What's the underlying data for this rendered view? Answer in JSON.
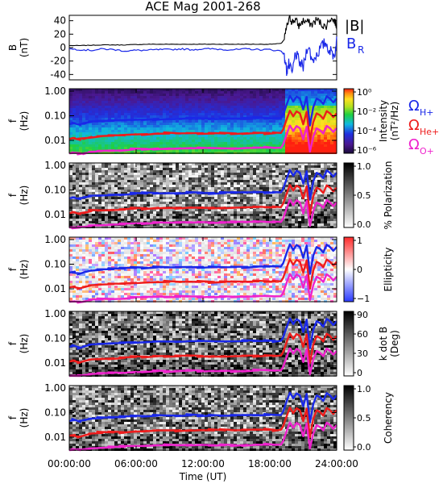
{
  "title": "ACE Mag 2001-268",
  "colors": {
    "blue": "#1a28e8",
    "red": "#ee1c1c",
    "magenta": "#ee22cc",
    "black": "#000000"
  },
  "time_axis": {
    "label": "Time (UT)",
    "ticks": [
      "00:00:00",
      "06:00:00",
      "12:00:00",
      "18:00:00",
      "24:00:00"
    ],
    "range_hours": [
      0,
      24
    ]
  },
  "freq_axis": {
    "tick_labels": [
      "1.00",
      "0.10",
      "0.01"
    ],
    "tick_values": [
      1.0,
      0.1,
      0.01
    ],
    "range_hz": [
      0.003,
      1.25
    ],
    "scale": "log"
  },
  "legend": {
    "top": [
      {
        "text": "|B|",
        "color": "#000000"
      },
      {
        "text": "B",
        "sub": "R",
        "color": "#1a28e8"
      }
    ],
    "gyro": [
      {
        "text": "Ω",
        "sub": "H+",
        "color": "#1a28e8"
      },
      {
        "text": "Ω",
        "sub": "He+",
        "color": "#ee1c1c"
      },
      {
        "text": "Ω",
        "sub": "O+",
        "color": "#ee22cc"
      }
    ]
  },
  "chart_data": [
    {
      "type": "line",
      "panel": "magnetic-field",
      "ylabel": "B",
      "ylabel2": "(nT)",
      "ylim": [
        -48,
        48
      ],
      "yticks": [
        40,
        20,
        0,
        -20,
        -40
      ],
      "xlim": [
        0,
        24
      ],
      "series": [
        {
          "name": "|B|",
          "x": [
            0,
            1,
            2,
            3,
            4,
            5,
            6,
            7,
            8,
            9,
            10,
            11,
            12,
            13,
            14,
            15,
            16,
            17,
            18,
            19,
            19.3,
            19.5,
            19.8,
            20,
            20.3,
            20.6,
            21,
            21.4,
            21.8,
            22.2,
            22.6,
            23,
            23.4,
            23.8,
            24
          ],
          "y": [
            3,
            3,
            3.5,
            4,
            4,
            4,
            4.5,
            5,
            5,
            5,
            5,
            5,
            5,
            5,
            5,
            5,
            5,
            5,
            5,
            6,
            12,
            30,
            44,
            38,
            42,
            32,
            40,
            38,
            34,
            42,
            36,
            30,
            44,
            40,
            32
          ]
        },
        {
          "name": "B_R",
          "x": [
            0,
            1,
            2,
            3,
            4,
            5,
            6,
            7,
            8,
            9,
            10,
            11,
            12,
            13,
            14,
            15,
            16,
            17,
            18,
            19,
            19.3,
            19.5,
            19.7,
            20,
            20.3,
            20.6,
            21,
            21.4,
            21.8,
            22.2,
            22.6,
            23,
            23.4,
            23.8,
            24
          ],
          "y": [
            -2,
            -3,
            -4,
            -2,
            -3,
            -5,
            -4,
            -4,
            -3,
            -3,
            -2,
            -3,
            -2,
            -2,
            -3,
            -3,
            -2,
            -3,
            -3,
            -5,
            -10,
            -35,
            -25,
            -40,
            -8,
            -20,
            -30,
            5,
            -20,
            -10,
            0,
            8,
            -5,
            -12,
            10
          ]
        }
      ]
    },
    {
      "type": "heatmap",
      "panel": "intensity",
      "ylabel": "f",
      "ylabel2": "(Hz)",
      "colorbar": {
        "label": "Intensity",
        "label2": "(nT²/Hz)",
        "ticks": [
          "10⁰",
          "10⁻²",
          "10⁻⁴",
          "10⁻⁶"
        ],
        "colormap": "rainbow"
      }
    },
    {
      "type": "heatmap",
      "panel": "polarization",
      "ylabel": "f",
      "ylabel2": "(Hz)",
      "colorbar": {
        "label": "% Polarization",
        "ticks": [
          "1.0",
          "0.5",
          "0.0"
        ],
        "colormap": "gray"
      }
    },
    {
      "type": "heatmap",
      "panel": "ellipticity",
      "ylabel": "f",
      "ylabel2": "(Hz)",
      "colorbar": {
        "label": "Ellipticity",
        "ticks": [
          "1",
          "0",
          "−1"
        ],
        "colormap": "blue-white-red"
      }
    },
    {
      "type": "heatmap",
      "panel": "k-dot-b",
      "ylabel": "f",
      "ylabel2": "(Hz)",
      "colorbar": {
        "label": "k dot B",
        "label2": "(Deg)",
        "ticks": [
          "90",
          "60",
          "30",
          "0"
        ],
        "colormap": "gray"
      }
    },
    {
      "type": "heatmap",
      "panel": "coherency",
      "ylabel": "f",
      "ylabel2": "(Hz)",
      "colorbar": {
        "label": "Coherency",
        "ticks": [
          "1.0",
          "0.5",
          "0.0"
        ],
        "colormap": "gray"
      }
    },
    {
      "type": "line",
      "panel": "gyrofrequency-overlays",
      "note_units": "Hz",
      "x": [
        0,
        0.5,
        1,
        1.5,
        2,
        3,
        4,
        5,
        6,
        7,
        8,
        9,
        10,
        11,
        12,
        13,
        14,
        15,
        16,
        17,
        18,
        18.5,
        19,
        19.2,
        19.5,
        19.8,
        20.1,
        20.4,
        20.7,
        21,
        21.3,
        21.6,
        21.9,
        22.2,
        22.5,
        22.8,
        23.1,
        23.4,
        23.7,
        24
      ],
      "series": [
        {
          "name": "Ω H+",
          "y": [
            0.046,
            0.05,
            0.042,
            0.05,
            0.056,
            0.06,
            0.062,
            0.065,
            0.07,
            0.072,
            0.075,
            0.075,
            0.075,
            0.078,
            0.078,
            0.076,
            0.075,
            0.076,
            0.078,
            0.08,
            0.08,
            0.079,
            0.08,
            0.11,
            0.28,
            0.65,
            0.38,
            0.6,
            0.5,
            0.18,
            0.58,
            0.04,
            0.22,
            0.5,
            0.42,
            0.3,
            0.62,
            0.5,
            0.35,
            0.5
          ]
        },
        {
          "name": "Ω He+",
          "y": [
            0.0115,
            0.0125,
            0.0105,
            0.0125,
            0.014,
            0.015,
            0.0155,
            0.016,
            0.0175,
            0.018,
            0.019,
            0.019,
            0.019,
            0.0195,
            0.0195,
            0.019,
            0.019,
            0.019,
            0.0195,
            0.02,
            0.02,
            0.0198,
            0.02,
            0.028,
            0.07,
            0.16,
            0.095,
            0.15,
            0.125,
            0.045,
            0.145,
            0.01,
            0.055,
            0.125,
            0.105,
            0.075,
            0.155,
            0.125,
            0.088,
            0.125
          ]
        },
        {
          "name": "Ω O+",
          "y": [
            0.0029,
            0.0031,
            0.0026,
            0.0031,
            0.0035,
            0.0037,
            0.0039,
            0.004,
            0.0044,
            0.0045,
            0.0047,
            0.0047,
            0.0047,
            0.0049,
            0.0049,
            0.0048,
            0.0047,
            0.0048,
            0.0049,
            0.005,
            0.005,
            0.0049,
            0.005,
            0.007,
            0.0175,
            0.04,
            0.024,
            0.038,
            0.031,
            0.011,
            0.036,
            0.0035,
            0.014,
            0.031,
            0.026,
            0.019,
            0.039,
            0.031,
            0.022,
            0.031
          ]
        }
      ]
    }
  ]
}
